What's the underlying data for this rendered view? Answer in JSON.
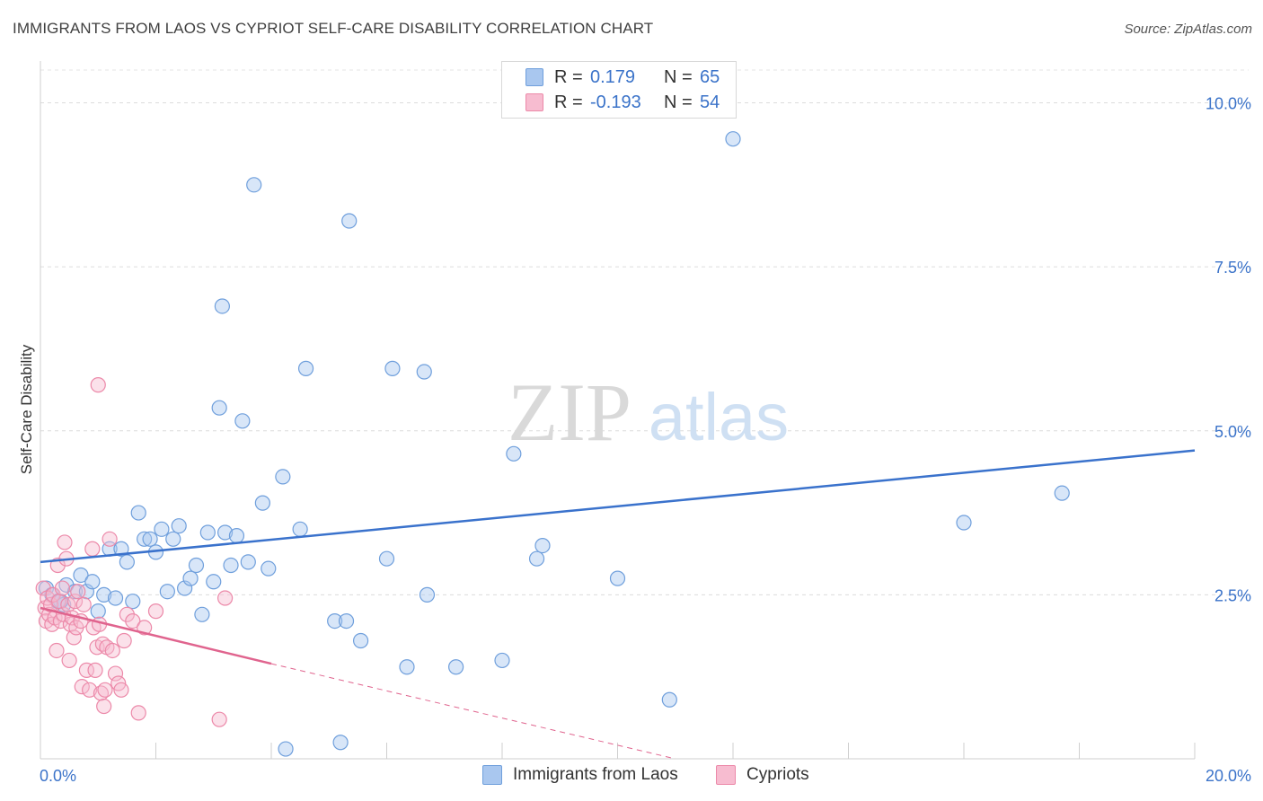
{
  "title": "IMMIGRANTS FROM LAOS VS CYPRIOT SELF-CARE DISABILITY CORRELATION CHART",
  "source": "Source: ZipAtlas.com",
  "watermark": {
    "zip": "ZIP",
    "atlas": "atlas"
  },
  "legend": {
    "rows": [
      {
        "r_label": "R =",
        "r_value": "0.179",
        "n_label": "N =",
        "n_value": "65",
        "color": "#a9c7ef",
        "border": "#6f9fdc"
      },
      {
        "r_label": "R =",
        "r_value": "-0.193",
        "n_label": "N =",
        "n_value": "54",
        "color": "#f7bcd0",
        "border": "#ec89a9"
      }
    ]
  },
  "chart_data": {
    "type": "scatter",
    "title": "IMMIGRANTS FROM LAOS VS CYPRIOT SELF-CARE DISABILITY CORRELATION CHART",
    "xlabel": "",
    "ylabel": "Self-Care Disability",
    "xlim": [
      0,
      20
    ],
    "ylim": [
      0,
      10.5
    ],
    "x_tick_labels": [
      "0.0%",
      "20.0%"
    ],
    "y_ticks": [
      2.5,
      5.0,
      7.5,
      10.0
    ],
    "y_tick_labels": [
      "2.5%",
      "5.0%",
      "7.5%",
      "10.0%"
    ],
    "grid": true,
    "legend_position": "top-center",
    "series": [
      {
        "name": "Immigrants from Laos",
        "color": "#6f9fdc",
        "fill": "#a9c7ef",
        "line_color": "#3a72cc",
        "trend": {
          "x": [
            0,
            20
          ],
          "y": [
            3.0,
            4.7
          ],
          "dashed_from": null
        },
        "points": [
          [
            0.1,
            2.6
          ],
          [
            0.2,
            2.5
          ],
          [
            0.3,
            2.4
          ],
          [
            0.4,
            2.35
          ],
          [
            0.45,
            2.65
          ],
          [
            0.6,
            2.55
          ],
          [
            0.7,
            2.8
          ],
          [
            0.8,
            2.55
          ],
          [
            0.9,
            2.7
          ],
          [
            1.0,
            2.25
          ],
          [
            1.1,
            2.5
          ],
          [
            1.2,
            3.2
          ],
          [
            1.3,
            2.45
          ],
          [
            1.4,
            3.2
          ],
          [
            1.5,
            3.0
          ],
          [
            1.6,
            2.4
          ],
          [
            1.7,
            3.75
          ],
          [
            1.8,
            3.35
          ],
          [
            1.9,
            3.35
          ],
          [
            2.0,
            3.15
          ],
          [
            2.1,
            3.5
          ],
          [
            2.2,
            2.55
          ],
          [
            2.3,
            3.35
          ],
          [
            2.4,
            3.55
          ],
          [
            2.5,
            2.6
          ],
          [
            2.6,
            2.75
          ],
          [
            2.7,
            2.95
          ],
          [
            2.8,
            2.2
          ],
          [
            2.9,
            3.45
          ],
          [
            3.0,
            2.7
          ],
          [
            3.1,
            5.35
          ],
          [
            3.15,
            6.9
          ],
          [
            3.2,
            3.45
          ],
          [
            3.3,
            2.95
          ],
          [
            3.4,
            3.4
          ],
          [
            3.5,
            5.15
          ],
          [
            3.6,
            3.0
          ],
          [
            3.7,
            8.75
          ],
          [
            3.85,
            3.9
          ],
          [
            3.95,
            2.9
          ],
          [
            4.2,
            4.3
          ],
          [
            4.25,
            0.15
          ],
          [
            4.5,
            3.5
          ],
          [
            4.6,
            5.95
          ],
          [
            5.1,
            2.1
          ],
          [
            5.2,
            0.25
          ],
          [
            5.3,
            2.1
          ],
          [
            5.35,
            8.2
          ],
          [
            5.55,
            1.8
          ],
          [
            6.0,
            3.05
          ],
          [
            6.1,
            5.95
          ],
          [
            6.35,
            1.4
          ],
          [
            6.65,
            5.9
          ],
          [
            6.7,
            2.5
          ],
          [
            7.2,
            1.4
          ],
          [
            8.0,
            1.5
          ],
          [
            8.2,
            4.65
          ],
          [
            8.6,
            3.05
          ],
          [
            8.7,
            3.25
          ],
          [
            10.0,
            2.75
          ],
          [
            10.9,
            0.9
          ],
          [
            12.0,
            9.45
          ],
          [
            16.0,
            3.6
          ],
          [
            17.7,
            4.05
          ],
          [
            0.35,
            2.4
          ]
        ]
      },
      {
        "name": "Cypriots",
        "color": "#ec89a9",
        "fill": "#f7bcd0",
        "line_color": "#e0648e",
        "trend": {
          "x": [
            0,
            4.0,
            11.0
          ],
          "y": [
            2.3,
            1.45,
            0.0
          ],
          "dashed_from": 4.0
        },
        "points": [
          [
            0.05,
            2.6
          ],
          [
            0.08,
            2.3
          ],
          [
            0.1,
            2.1
          ],
          [
            0.12,
            2.45
          ],
          [
            0.15,
            2.2
          ],
          [
            0.18,
            2.35
          ],
          [
            0.2,
            2.05
          ],
          [
            0.22,
            2.5
          ],
          [
            0.25,
            2.15
          ],
          [
            0.28,
            1.65
          ],
          [
            0.3,
            2.95
          ],
          [
            0.32,
            2.4
          ],
          [
            0.35,
            2.1
          ],
          [
            0.38,
            2.6
          ],
          [
            0.4,
            2.2
          ],
          [
            0.42,
            3.3
          ],
          [
            0.45,
            3.05
          ],
          [
            0.48,
            2.35
          ],
          [
            0.5,
            1.5
          ],
          [
            0.52,
            2.05
          ],
          [
            0.55,
            2.15
          ],
          [
            0.58,
            1.85
          ],
          [
            0.6,
            2.4
          ],
          [
            0.62,
            2.0
          ],
          [
            0.65,
            2.55
          ],
          [
            0.7,
            2.1
          ],
          [
            0.72,
            1.1
          ],
          [
            0.75,
            2.35
          ],
          [
            0.8,
            1.35
          ],
          [
            0.85,
            1.05
          ],
          [
            0.9,
            3.2
          ],
          [
            0.92,
            2.0
          ],
          [
            0.95,
            1.35
          ],
          [
            0.98,
            1.7
          ],
          [
            1.0,
            5.7
          ],
          [
            1.02,
            2.05
          ],
          [
            1.05,
            1.0
          ],
          [
            1.08,
            1.75
          ],
          [
            1.1,
            0.8
          ],
          [
            1.12,
            1.05
          ],
          [
            1.15,
            1.7
          ],
          [
            1.2,
            3.35
          ],
          [
            1.25,
            1.65
          ],
          [
            1.3,
            1.3
          ],
          [
            1.35,
            1.15
          ],
          [
            1.4,
            1.05
          ],
          [
            1.45,
            1.8
          ],
          [
            1.5,
            2.2
          ],
          [
            1.6,
            2.1
          ],
          [
            1.7,
            0.7
          ],
          [
            1.8,
            2.0
          ],
          [
            2.0,
            2.25
          ],
          [
            3.1,
            0.6
          ],
          [
            3.2,
            2.45
          ]
        ]
      }
    ]
  },
  "bottom_legend": [
    {
      "label": "Immigrants from Laos",
      "color": "#a9c7ef",
      "border": "#6f9fdc"
    },
    {
      "label": "Cypriots",
      "color": "#f7bcd0",
      "border": "#ec89a9"
    }
  ]
}
